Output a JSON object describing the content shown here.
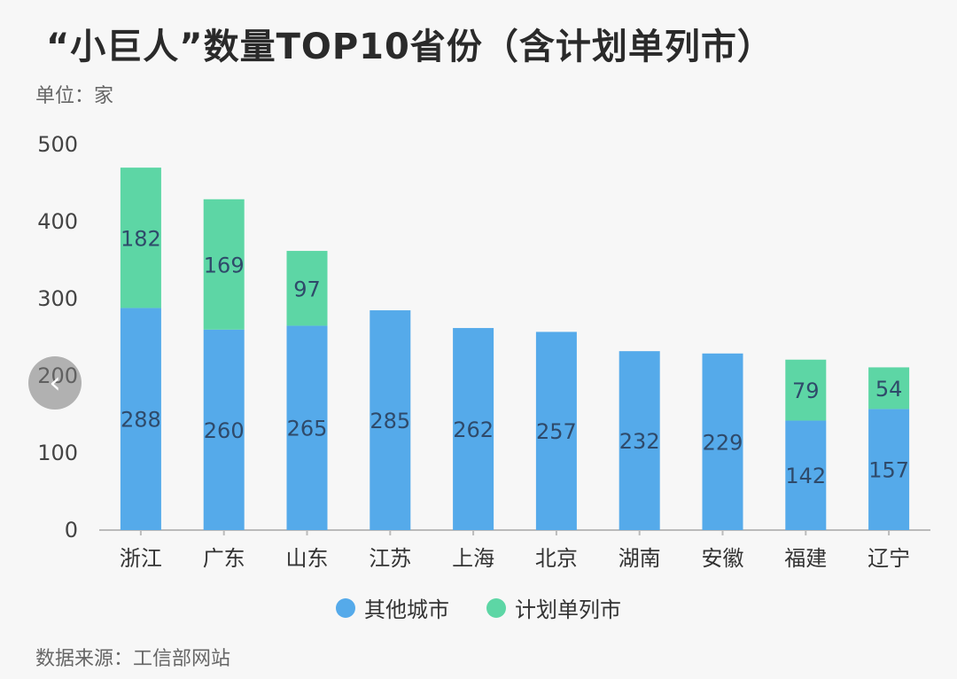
{
  "title": "“小巨人”数量TOP10省份（含计划单列市）",
  "unit_label": "单位：家",
  "source_label": "数据来源：工信部网站",
  "nav_icon": "chevron-left-icon",
  "colors": {
    "series_0": "#55aaea",
    "series_1": "#5dd6a5",
    "axis": "#bbbbbb",
    "text": "#333333"
  },
  "chart_data": {
    "type": "bar",
    "stacked": true,
    "categories": [
      "浙江",
      "广东",
      "山东",
      "江苏",
      "上海",
      "北京",
      "湖南",
      "安徽",
      "福建",
      "辽宁"
    ],
    "series": [
      {
        "name": "其他城市",
        "values": [
          288,
          260,
          265,
          285,
          262,
          257,
          232,
          229,
          142,
          157
        ]
      },
      {
        "name": "计划单列市",
        "values": [
          182,
          169,
          97,
          null,
          null,
          null,
          null,
          null,
          79,
          54
        ]
      }
    ],
    "ylim": [
      0,
      500
    ],
    "yticks": [
      0,
      100,
      200,
      300,
      400,
      500
    ],
    "grid": false,
    "legend_position": "bottom"
  }
}
